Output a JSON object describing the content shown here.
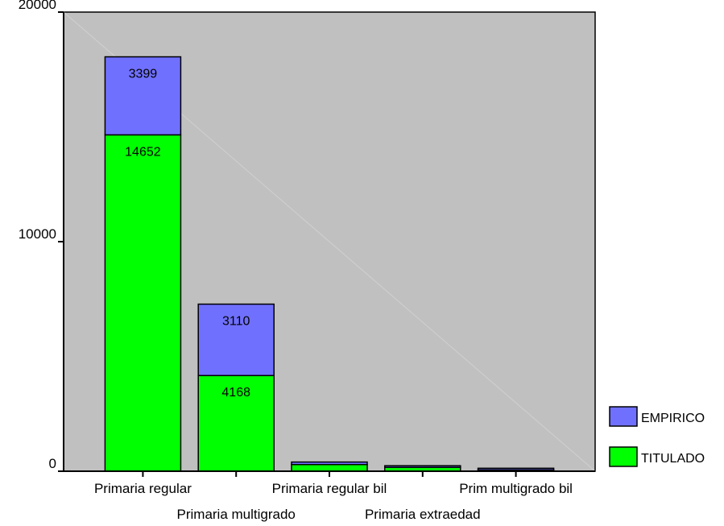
{
  "chart_data": {
    "type": "bar",
    "stacked": true,
    "categories": [
      "Primaria regular",
      "Primaria multigrado",
      "Primaria regular bil",
      "Primaria extraedad",
      "Prim multigrado bil"
    ],
    "series": [
      {
        "name": "TITULADO",
        "values": [
          14652,
          4168,
          290,
          170,
          60
        ],
        "labels": [
          "14652",
          "4168",
          "",
          "",
          ""
        ],
        "color": "#00ff00"
      },
      {
        "name": "EMPIRICO",
        "values": [
          3399,
          3110,
          110,
          60,
          30
        ],
        "labels": [
          "3399",
          "3110",
          "",
          "",
          ""
        ],
        "color": "#7070ff"
      }
    ],
    "ylim": [
      0,
      20000
    ],
    "yticks": [
      0,
      10000,
      20000
    ],
    "ytick_labels": [
      "0",
      "10000",
      "20000"
    ],
    "legend": {
      "position": "bottom-right",
      "order": [
        "EMPIRICO",
        "TITULADO"
      ]
    },
    "plot_background": "#c0c0c0",
    "grid": false
  }
}
